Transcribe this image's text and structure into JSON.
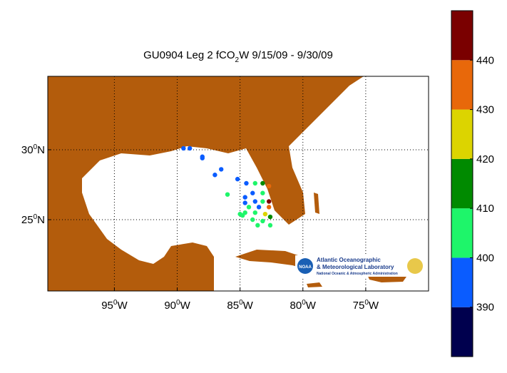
{
  "chart_data": {
    "type": "track-map",
    "title": {
      "main": "GU0904 Leg 2 fCO",
      "subscript": "2",
      "rest": "W 9/15/09 - 9/30/09"
    },
    "xlim": [
      -100.3,
      -70
    ],
    "ylim": [
      19.9,
      35.25
    ],
    "degree_mark": "0",
    "x_hemisphere": "W",
    "y_hemisphere": "N",
    "xticks": [
      {
        "value": -95,
        "label": "95"
      },
      {
        "value": -90,
        "label": "90"
      },
      {
        "value": -85,
        "label": "85"
      },
      {
        "value": -80,
        "label": "80"
      },
      {
        "value": -75,
        "label": "75"
      }
    ],
    "yticks": [
      25,
      30
    ],
    "grid": true,
    "land_color": "#b35c0c",
    "track": {
      "lon": [
        -89.5,
        -88,
        -86.5,
        -85.2,
        -84.5,
        -83.8,
        -83.2,
        -82.7,
        -83.2,
        -84.0,
        -84.6,
        -84.6,
        -83.8,
        -83.2,
        -82.7,
        -82.7,
        -83.5,
        -84.3,
        -84.6,
        -83.8,
        -83.0,
        -82.6,
        -83.2,
        -84.0,
        -84.8,
        -83.6,
        -82.6,
        -85.0,
        -86.0,
        -87.0,
        -88.0,
        -89.0
      ],
      "lat": [
        30.1,
        29.4,
        28.6,
        27.9,
        27.6,
        27.6,
        27.6,
        27.4,
        26.9,
        26.9,
        26.6,
        26.2,
        26.3,
        26.3,
        26.3,
        25.9,
        25.9,
        25.9,
        25.5,
        25.5,
        25.4,
        25.2,
        24.9,
        25.0,
        25.3,
        24.6,
        24.6,
        25.4,
        26.8,
        28.2,
        29.5,
        30.1
      ],
      "values": [
        395,
        396,
        397,
        395,
        398,
        405,
        412,
        435,
        405,
        395,
        393,
        394,
        395,
        405,
        445,
        432,
        398,
        402,
        405,
        406,
        425,
        415,
        405,
        406,
        405,
        406,
        404,
        404,
        400,
        398,
        395,
        393
      ]
    },
    "colorbar": {
      "lim": [
        380,
        450
      ],
      "ticks": [
        390,
        400,
        410,
        420,
        430,
        440
      ],
      "colors": [
        "#00004e",
        "#0a5cff",
        "#1ef56a",
        "#008a00",
        "#dcd400",
        "#e8680a",
        "#7a0000"
      ]
    },
    "logo": {
      "badge": "NOAA",
      "line1": "Atlantic Oceanographic",
      "line2": "& Meteorological Laboratory",
      "line3": "National Oceanic & Atmospheric Administration"
    }
  }
}
